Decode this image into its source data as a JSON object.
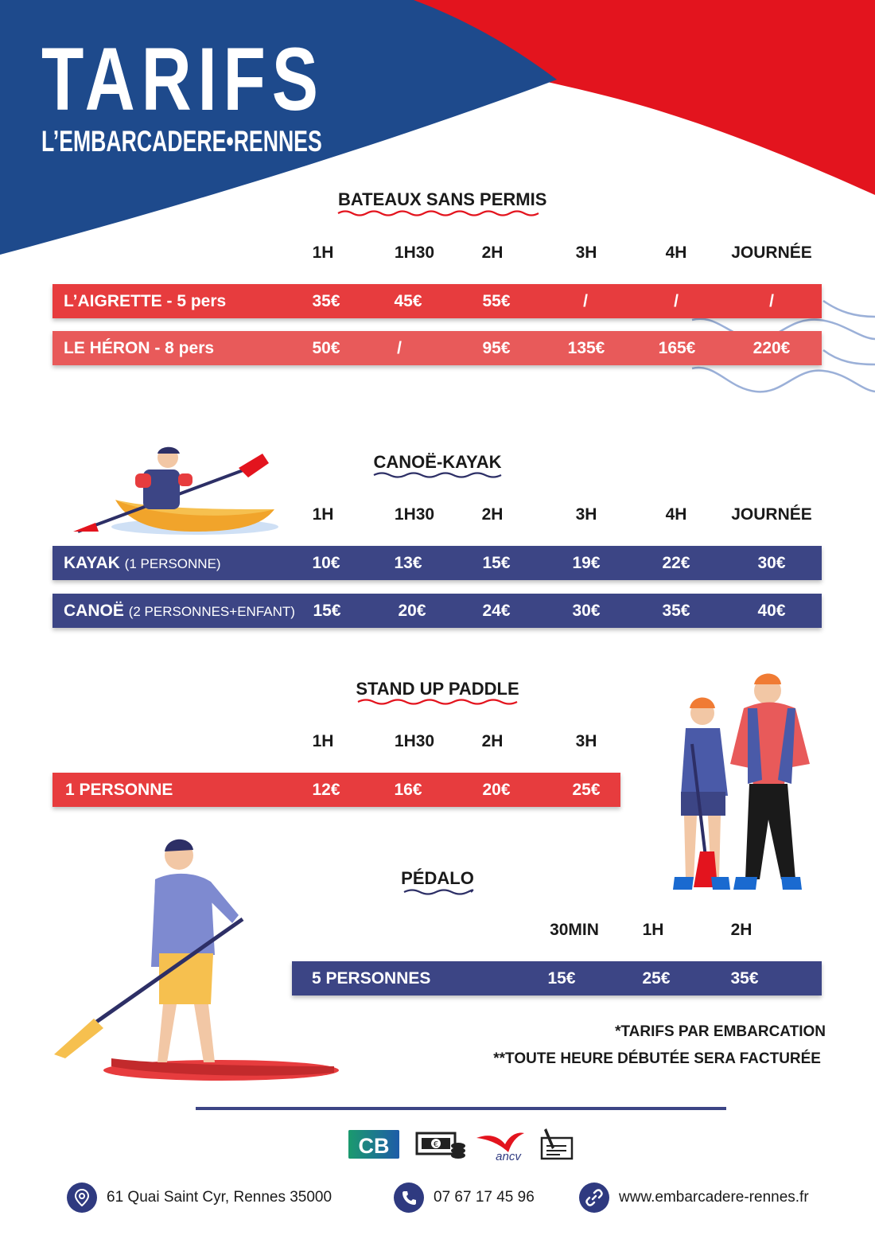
{
  "header": {
    "title": "TARIFS",
    "subtitle": "L’EMBARCADERE•RENNES"
  },
  "sections": {
    "bateaux": {
      "title": "BATEAUX SANS PERMIS",
      "columns": [
        "1H",
        "1H30",
        "2H",
        "3H",
        "4H",
        "JOURNÉE"
      ],
      "rows": [
        {
          "label": "L’AIGRETTE - 5 pers",
          "prices": [
            "35€",
            "45€",
            "55€",
            "/",
            "/",
            "/"
          ]
        },
        {
          "label": "LE HÉRON - 8 pers",
          "prices": [
            "50€",
            "/",
            "95€",
            "135€",
            "165€",
            "220€"
          ]
        }
      ]
    },
    "canoe": {
      "title": "CANOË-KAYAK",
      "columns": [
        "1H",
        "1H30",
        "2H",
        "3H",
        "4H",
        "JOURNÉE"
      ],
      "rows": [
        {
          "label": "KAYAK",
          "detail": "(1 PERSONNE)",
          "prices": [
            "10€",
            "13€",
            "15€",
            "19€",
            "22€",
            "30€"
          ]
        },
        {
          "label": "CANOË",
          "detail": "(2 PERSONNES+ENFANT)",
          "prices": [
            "15€",
            "20€",
            "24€",
            "30€",
            "35€",
            "40€"
          ]
        }
      ]
    },
    "paddle": {
      "title": "STAND UP PADDLE",
      "columns": [
        "1H",
        "1H30",
        "2H",
        "3H"
      ],
      "rows": [
        {
          "label": "1 PERSONNE",
          "prices": [
            "12€",
            "16€",
            "20€",
            "25€"
          ]
        }
      ]
    },
    "pedalo": {
      "title": "PÉDALO",
      "columns": [
        "30MIN",
        "1H",
        "2H"
      ],
      "rows": [
        {
          "label": "5 PERSONNES",
          "prices": [
            "15€",
            "25€",
            "35€"
          ]
        }
      ]
    }
  },
  "notes": [
    "*TARIFS PAR EMBARCATION",
    "**TOUTE HEURE DÉBUTÉE SERA FACTURÉE"
  ],
  "payment": {
    "cb": "CB",
    "ancv": "ancv",
    "icons": [
      "cb-card-icon",
      "cash-icon",
      "ancv-logo",
      "cheque-icon"
    ]
  },
  "contact": {
    "address": "61 Quai Saint Cyr, Rennes 35000",
    "phone": "07 67 17 45 96",
    "website": "www.embarcadere-rennes.fr"
  },
  "colors": {
    "blue": "#1e4a8c",
    "red": "#e3141e",
    "navy": "#3c4585",
    "row_red": "#e73c3e"
  }
}
